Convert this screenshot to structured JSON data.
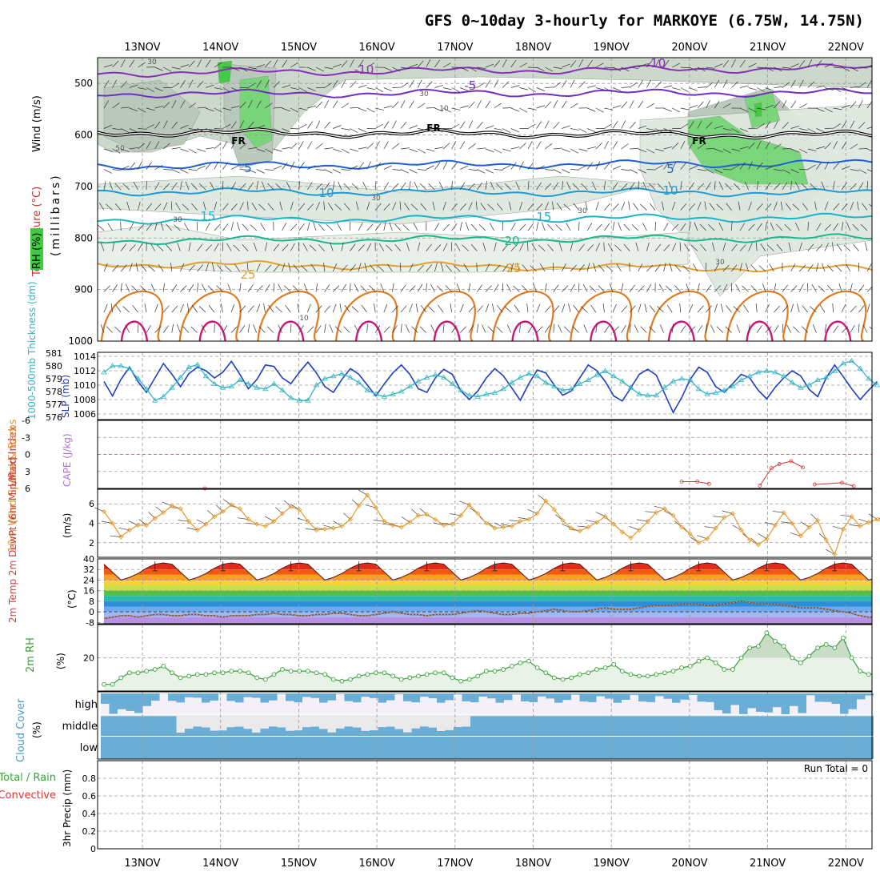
{
  "title": "GFS 0~10day 3-hourly for MARKOYE (6.75W, 14.75N)",
  "dates": [
    "13NOV",
    "14NOV",
    "15NOV",
    "16NOV",
    "17NOV",
    "18NOV",
    "19NOV",
    "20NOV",
    "21NOV",
    "22NOV"
  ],
  "colors": {
    "grid": "#9a9a9a",
    "slp": "#1f3fbf",
    "thickness": "#33b5c4",
    "lifted_index": "#d04040",
    "wind_speed": "#e39a2e",
    "rh2m": "#3aa13a",
    "cloud": "#6aaed6",
    "precip_total": "#33aa33",
    "precip_convective": "#dd3333"
  },
  "chart_data": [
    {
      "id": "pressure-cross-section",
      "type": "contour",
      "ylabel_wind": "Wind (m/s)",
      "ylabel_temp": "Temperature (°C)",
      "ylabel_rh": "RH (%)",
      "ylabel_units": "(millibars)",
      "yticks": [
        "500",
        "600",
        "700",
        "800",
        "900",
        "1000"
      ],
      "ylim": [
        450,
        1000
      ],
      "isotherm_labels": [
        "-10",
        "-10",
        "-5",
        "FR",
        "FR",
        "FR",
        "5",
        "5",
        "10",
        "10",
        "15",
        "15",
        "20",
        "25",
        "25"
      ],
      "rh_contour_labels": [
        "30",
        "30",
        "10",
        "30",
        "30",
        "30",
        "50",
        "10",
        "30"
      ],
      "isotherms": [
        {
          "temp": -10,
          "levels": [
            480,
            470
          ]
        },
        {
          "temp": -5,
          "levels": [
            520,
            518
          ]
        },
        {
          "temp": 0,
          "levels": [
            595,
            600
          ]
        },
        {
          "temp": 5,
          "levels": [
            660,
            655
          ]
        },
        {
          "temp": 10,
          "levels": [
            710,
            712
          ]
        },
        {
          "temp": 15,
          "levels": [
            765,
            760
          ]
        },
        {
          "temp": 20,
          "levels": [
            805,
            800
          ]
        },
        {
          "temp": 25,
          "levels": [
            850,
            860
          ]
        }
      ]
    },
    {
      "id": "slp-thickness",
      "type": "line",
      "ylabel_left": "1000-500mb Thickness (dm)",
      "ylabel_right": "SLP (mb)",
      "yticks_left": [
        "581",
        "580",
        "579",
        "578",
        "577",
        "576"
      ],
      "yticks_right": [
        "1014",
        "1012",
        "1010",
        "1008",
        "1006"
      ],
      "series": [
        {
          "name": "SLP (mb)",
          "values": [
            1010.5,
            1008.5,
            1010.8,
            1012.5,
            1010.5,
            1009,
            1011,
            1013,
            1011.5,
            1009.8,
            1011.6,
            1012.5,
            1012,
            1011,
            1011.8,
            1013.3,
            1011.5,
            1009.5,
            1010.8,
            1012.8,
            1012.6,
            1011,
            1010.2,
            1011.8,
            1013.2,
            1011.7,
            1009.8,
            1009,
            1010.8,
            1012.3,
            1011.5,
            1010,
            1008.5,
            1010.2,
            1011.7,
            1012.8,
            1011.5,
            1009.5,
            1009,
            1011,
            1012.2,
            1011.5,
            1009.2,
            1008,
            1009.2,
            1011,
            1012.3,
            1011.3,
            1009.6,
            1007.9,
            1010.2,
            1012.1,
            1011.7,
            1010,
            1008.6,
            1009.2,
            1011,
            1012.8,
            1012,
            1010.5,
            1008.5,
            1007.8,
            1009.6,
            1011.5,
            1012.2,
            1011.4,
            1008.8,
            1006.2,
            1008.3,
            1010.8,
            1012.5,
            1011.8,
            1009.8,
            1009,
            1010.2,
            1011.5,
            1011,
            1009.3,
            1008.1,
            1009.7,
            1011,
            1012,
            1011.3,
            1009.4,
            1008.4,
            1011,
            1012.8,
            1011.2,
            1009.5,
            1008,
            1009.3,
            1010.5
          ]
        },
        {
          "name": "1000-500mb Thickness (dm)",
          "values": [
            579.5,
            580,
            580,
            579.8,
            579,
            578.2,
            577.3,
            577.6,
            578.3,
            579.1,
            579.9,
            580.1,
            579.2,
            578.6,
            578.3,
            578.4,
            578.9,
            578.6,
            578.3,
            578.2,
            578.6,
            578.1,
            577.5,
            577.3,
            577.3,
            578.5,
            579,
            579.2,
            579.4,
            579.1,
            578.7,
            578.1,
            577.8,
            577.6,
            577.8,
            578,
            578.4,
            578.8,
            579.1,
            579.3,
            579.1,
            578.6,
            578.1,
            577.7,
            577.6,
            577.8,
            577.9,
            578.2,
            578.7,
            579.1,
            579.4,
            579.2,
            578.7,
            578.4,
            578.1,
            578.2,
            578.6,
            578.9,
            579.3,
            579.6,
            579.2,
            578.8,
            578.3,
            577.8,
            577.7,
            577.7,
            578.3,
            578.8,
            579,
            578.9,
            578.2,
            577.8,
            577.9,
            578.1,
            578.4,
            578.9,
            579.2,
            579.5,
            579.6,
            579.5,
            579.2,
            578.7,
            578.3,
            578.5,
            578.9,
            579.1,
            579.6,
            580.2,
            580.4,
            579.8,
            579,
            578.5
          ]
        }
      ]
    },
    {
      "id": "cape-li",
      "type": "line",
      "ylabel_left": "Lifted Index",
      "ylabel_right": "CAPE (J/kg)",
      "yticks": [
        "-6",
        "-3",
        "0",
        "3",
        "6"
      ],
      "ylim": [
        6,
        -6
      ],
      "series": [
        {
          "name": "Lifted Index",
          "points": [
            [
              1.3,
              6
            ],
            [
              7.4,
              4.8
            ],
            [
              7.6,
              4.8
            ],
            [
              7.75,
              5.2
            ],
            [
              8.4,
              5.5
            ],
            [
              8.55,
              2.4
            ],
            [
              8.65,
              1.7
            ],
            [
              8.8,
              1.2
            ],
            [
              8.95,
              2.3
            ],
            [
              9.1,
              5.3
            ],
            [
              9.45,
              5
            ],
            [
              9.6,
              5.6
            ]
          ]
        }
      ]
    },
    {
      "id": "wind10m",
      "type": "line",
      "ylabel": "10m Wind Speed & Barbs",
      "yunit": "(m/s)",
      "yticks": [
        "2",
        "4",
        "6"
      ],
      "ylim": [
        0.5,
        7.5
      ],
      "series": [
        {
          "name": "10m Wind Speed (m/s)",
          "values": [
            5.2,
            4,
            2.6,
            3.3,
            3.8,
            3.8,
            4.5,
            5.1,
            5.8,
            5.5,
            4.2,
            3.3,
            3.9,
            4.7,
            5.2,
            5.9,
            5.5,
            4.4,
            3.9,
            3.7,
            4.2,
            5,
            5.7,
            5.4,
            4.2,
            3.3,
            3.4,
            3.5,
            3.7,
            4.4,
            5.8,
            6.9,
            5.6,
            4.2,
            3.8,
            3.6,
            4.1,
            4.8,
            4.9,
            4.4,
            3.8,
            3.9,
            4.8,
            5.9,
            5,
            4,
            3.5,
            3.6,
            3.7,
            4.2,
            4.4,
            5,
            6.3,
            5.4,
            4.3,
            3.5,
            3.2,
            3.6,
            4.1,
            4.7,
            3.9,
            3.1,
            2.5,
            3.3,
            4.2,
            5.1,
            5.5,
            4.8,
            3.6,
            2.9,
            2,
            2.4,
            3.5,
            4.6,
            5,
            3.3,
            2.3,
            1.8,
            2.4,
            3.8,
            5.1,
            4,
            2.7,
            3.6,
            4.3,
            2.3,
            0.8,
            3.4,
            4.7,
            3.7,
            4.1,
            4.4,
            3.9,
            4.5,
            4.9
          ]
        }
      ]
    },
    {
      "id": "temp2m",
      "type": "area",
      "ylabel": "2m Temp 2m DewPt (6hr Min/Max)",
      "yunit": "(°C)",
      "yticks": [
        "40",
        "32",
        "24",
        "16",
        "8",
        "0",
        "-8"
      ],
      "ylim": [
        -9,
        40
      ],
      "series": [
        {
          "name": "2m Temp (°C)",
          "values": [
            36,
            30,
            24,
            26,
            29,
            33,
            36,
            37,
            36,
            30,
            24,
            26,
            29,
            33,
            36,
            37,
            36,
            30,
            24,
            26,
            29,
            33,
            36,
            37,
            36,
            30,
            24,
            26,
            29,
            33,
            36,
            37,
            36,
            30,
            24,
            26,
            29,
            33,
            36,
            37,
            36,
            30,
            24,
            26,
            29,
            33,
            36,
            37,
            36,
            30,
            24,
            26,
            29,
            33,
            36,
            37,
            36,
            30,
            24,
            26,
            29,
            33,
            36,
            37,
            36,
            30,
            24,
            26,
            29,
            33,
            36,
            37,
            36,
            30,
            24,
            26,
            29,
            33,
            36,
            37,
            36,
            30,
            24,
            26,
            29,
            33,
            36,
            37,
            36,
            30,
            24,
            26
          ]
        },
        {
          "name": "2m DewPt (°C)",
          "values": [
            -5,
            -4,
            -3,
            -3,
            -4,
            -3,
            -2,
            -2,
            -3,
            -3,
            -2,
            -2,
            -3,
            -3,
            -4,
            -3,
            -3,
            -3,
            -2,
            -2,
            -1,
            -2,
            -2,
            -3,
            -3,
            -2,
            -2,
            -1,
            -1,
            -2,
            -3,
            -3,
            -2,
            -1,
            0,
            -1,
            -2,
            -2,
            -3,
            -2,
            -2,
            -2,
            -1,
            0,
            1,
            0,
            -1,
            -2,
            -2,
            -1,
            -1,
            0,
            1,
            2,
            1,
            0,
            0,
            1,
            2,
            3,
            2,
            2,
            2,
            3,
            4,
            5,
            5,
            5,
            6,
            6,
            6,
            5,
            5,
            6,
            7,
            8,
            7,
            6,
            6,
            6,
            5,
            4,
            3,
            3,
            3,
            2,
            1,
            0,
            -1,
            -3,
            -4,
            -4
          ]
        }
      ]
    },
    {
      "id": "rh2m",
      "type": "area",
      "ylabel": "2m RH",
      "yunit": "(%)",
      "yticks": [
        "20"
      ],
      "ylim": [
        0,
        40
      ],
      "series": [
        {
          "name": "2m RH (%)",
          "values": [
            4,
            4,
            8,
            11,
            11,
            12,
            13,
            15,
            11,
            8,
            9,
            10,
            10,
            11,
            11,
            12,
            12,
            11,
            8,
            7,
            10,
            13,
            12,
            12,
            12,
            11,
            10,
            7,
            6,
            7,
            9,
            10,
            11,
            11,
            9,
            7,
            8,
            9,
            10,
            11,
            11,
            8,
            6,
            7,
            9,
            12,
            12,
            13,
            15,
            17,
            18,
            14,
            11,
            8,
            7,
            8,
            10,
            11,
            13,
            14,
            16,
            12,
            10,
            9,
            9,
            10,
            11,
            12,
            14,
            15,
            18,
            20,
            17,
            13,
            13,
            20,
            26,
            27,
            35,
            30,
            27,
            20,
            17,
            21,
            26,
            28,
            26,
            32,
            20,
            12,
            10,
            11,
            13,
            13
          ]
        }
      ]
    },
    {
      "id": "cloud-cover",
      "type": "heatmap",
      "ylabel": "Cloud Cover",
      "yunit": "(%)",
      "ycats": [
        "high",
        "middle",
        "low"
      ]
    },
    {
      "id": "precip",
      "type": "bar",
      "ylabel_left": "Total / Rain",
      "ylabel_right": "Convective",
      "ylabel": "3hr Precip (mm)",
      "yticks": [
        "0",
        "0.2",
        "0.4",
        "0.6",
        "0.8"
      ],
      "ylim": [
        0,
        1
      ],
      "run_total": "Run Total = 0",
      "values": []
    }
  ]
}
